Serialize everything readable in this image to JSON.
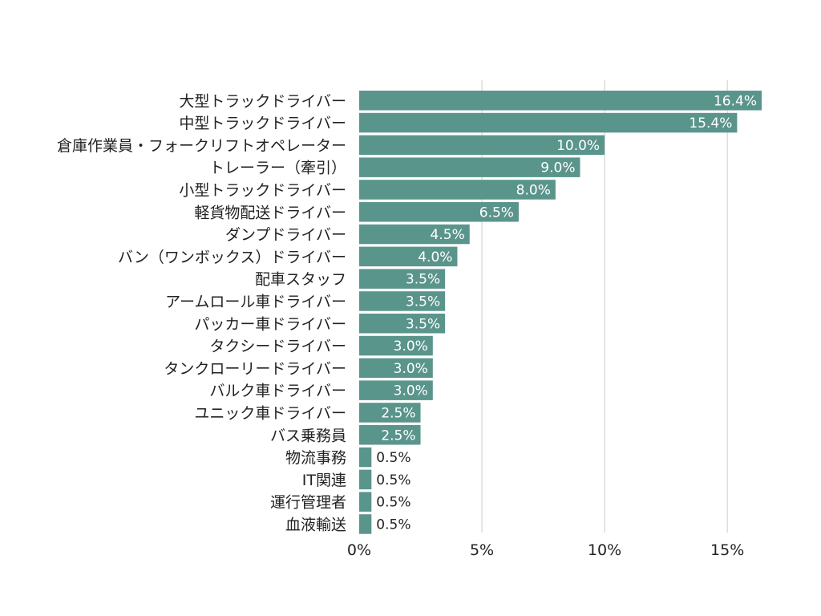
{
  "chart_data": {
    "type": "bar",
    "orientation": "horizontal",
    "categories": [
      "大型トラックドライバー",
      "中型トラックドライバー",
      "倉庫作業員・フォークリフトオペレーター",
      "トレーラー（牽引）",
      "小型トラックドライバー",
      "軽貨物配送ドライバー",
      "ダンプドライバー",
      "バン（ワンボックス）ドライバー",
      "配車スタッフ",
      "アームロール車ドライバー",
      "パッカー車ドライバー",
      "タクシードライバー",
      "タンクローリードライバー",
      "バルク車ドライバー",
      "ユニック車ドライバー",
      "バス乗務員",
      "物流事務",
      "IT関連",
      "運行管理者",
      "血液輸送"
    ],
    "values": [
      16.4,
      15.4,
      10.0,
      9.0,
      8.0,
      6.5,
      4.5,
      4.0,
      3.5,
      3.5,
      3.5,
      3.0,
      3.0,
      3.0,
      2.5,
      2.5,
      0.5,
      0.5,
      0.5,
      0.5
    ],
    "value_labels": [
      "16.4%",
      "15.4%",
      "10.0%",
      "9.0%",
      "8.0%",
      "6.5%",
      "4.5%",
      "4.0%",
      "3.5%",
      "3.5%",
      "3.5%",
      "3.0%",
      "3.0%",
      "3.0%",
      "2.5%",
      "2.5%",
      "0.5%",
      "0.5%",
      "0.5%",
      "0.5%"
    ],
    "x_ticks": [
      0,
      5,
      10,
      15
    ],
    "x_tick_labels": [
      "0%",
      "5%",
      "10%",
      "15%"
    ],
    "xlim": [
      0,
      16.4
    ],
    "grid": true,
    "bar_color": "#5a958c",
    "title": "",
    "xlabel": "",
    "ylabel": ""
  }
}
